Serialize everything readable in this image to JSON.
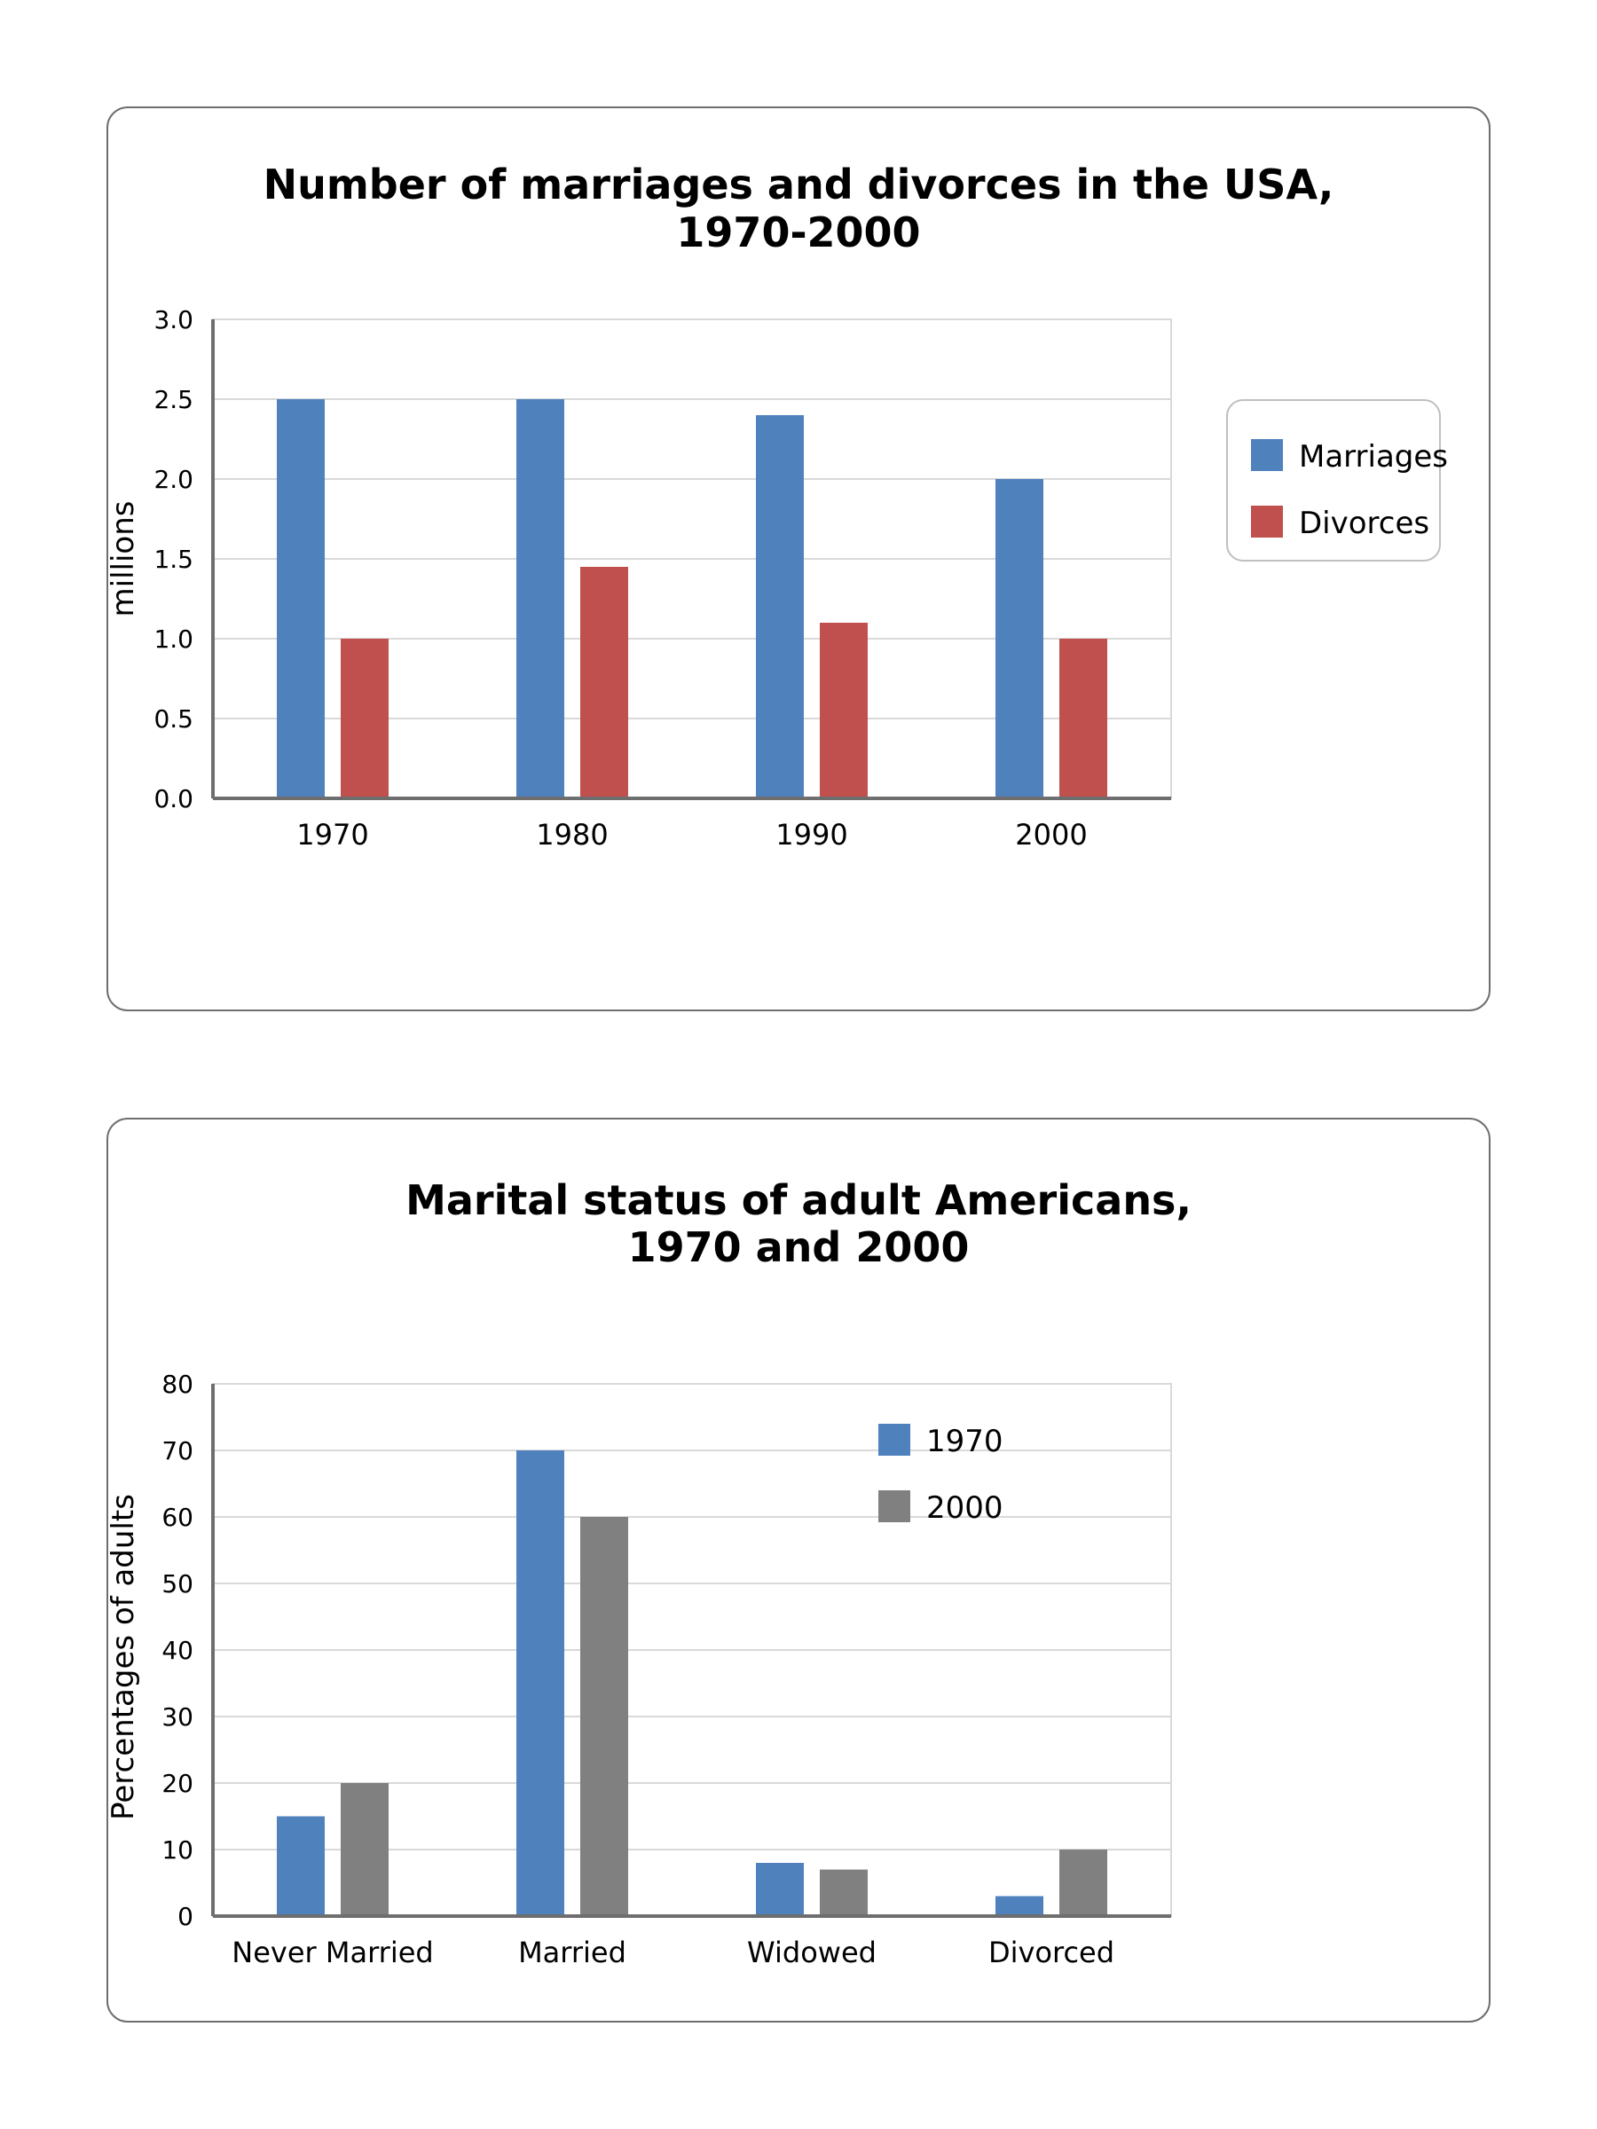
{
  "chart_data": [
    {
      "type": "bar",
      "title_lines": [
        "Number of marriages and divorces in the USA,",
        "1970-2000"
      ],
      "xlabel": "",
      "ylabel": "millions",
      "ylim": [
        0,
        3
      ],
      "yticks": [
        "0.0",
        "0.5",
        "1.0",
        "1.5",
        "2.0",
        "2.5",
        "3.0"
      ],
      "categories": [
        "1970",
        "1980",
        "1990",
        "2000"
      ],
      "grid": true,
      "legend_position": "right",
      "series": [
        {
          "name": "Marriages",
          "color": "#4f81bd",
          "values": [
            2.5,
            2.5,
            2.4,
            2.0
          ]
        },
        {
          "name": "Divorces",
          "color": "#c0504d",
          "values": [
            1.0,
            1.45,
            1.1,
            1.0
          ]
        }
      ]
    },
    {
      "type": "bar",
      "title_lines": [
        "Marital status of adult Americans,",
        "1970 and 2000"
      ],
      "xlabel": "",
      "ylabel": "Percentages of adults",
      "ylim": [
        0,
        80
      ],
      "yticks": [
        "0",
        "10",
        "20",
        "30",
        "40",
        "50",
        "60",
        "70",
        "80"
      ],
      "categories": [
        "Never Married",
        "Married",
        "Widowed",
        "Divorced"
      ],
      "grid": true,
      "legend_position": "top-right",
      "series": [
        {
          "name": "1970",
          "color": "#4f81bd",
          "values": [
            15,
            70,
            8,
            3
          ]
        },
        {
          "name": "2000",
          "color": "#808080",
          "values": [
            20,
            60,
            7,
            10
          ]
        }
      ]
    }
  ]
}
